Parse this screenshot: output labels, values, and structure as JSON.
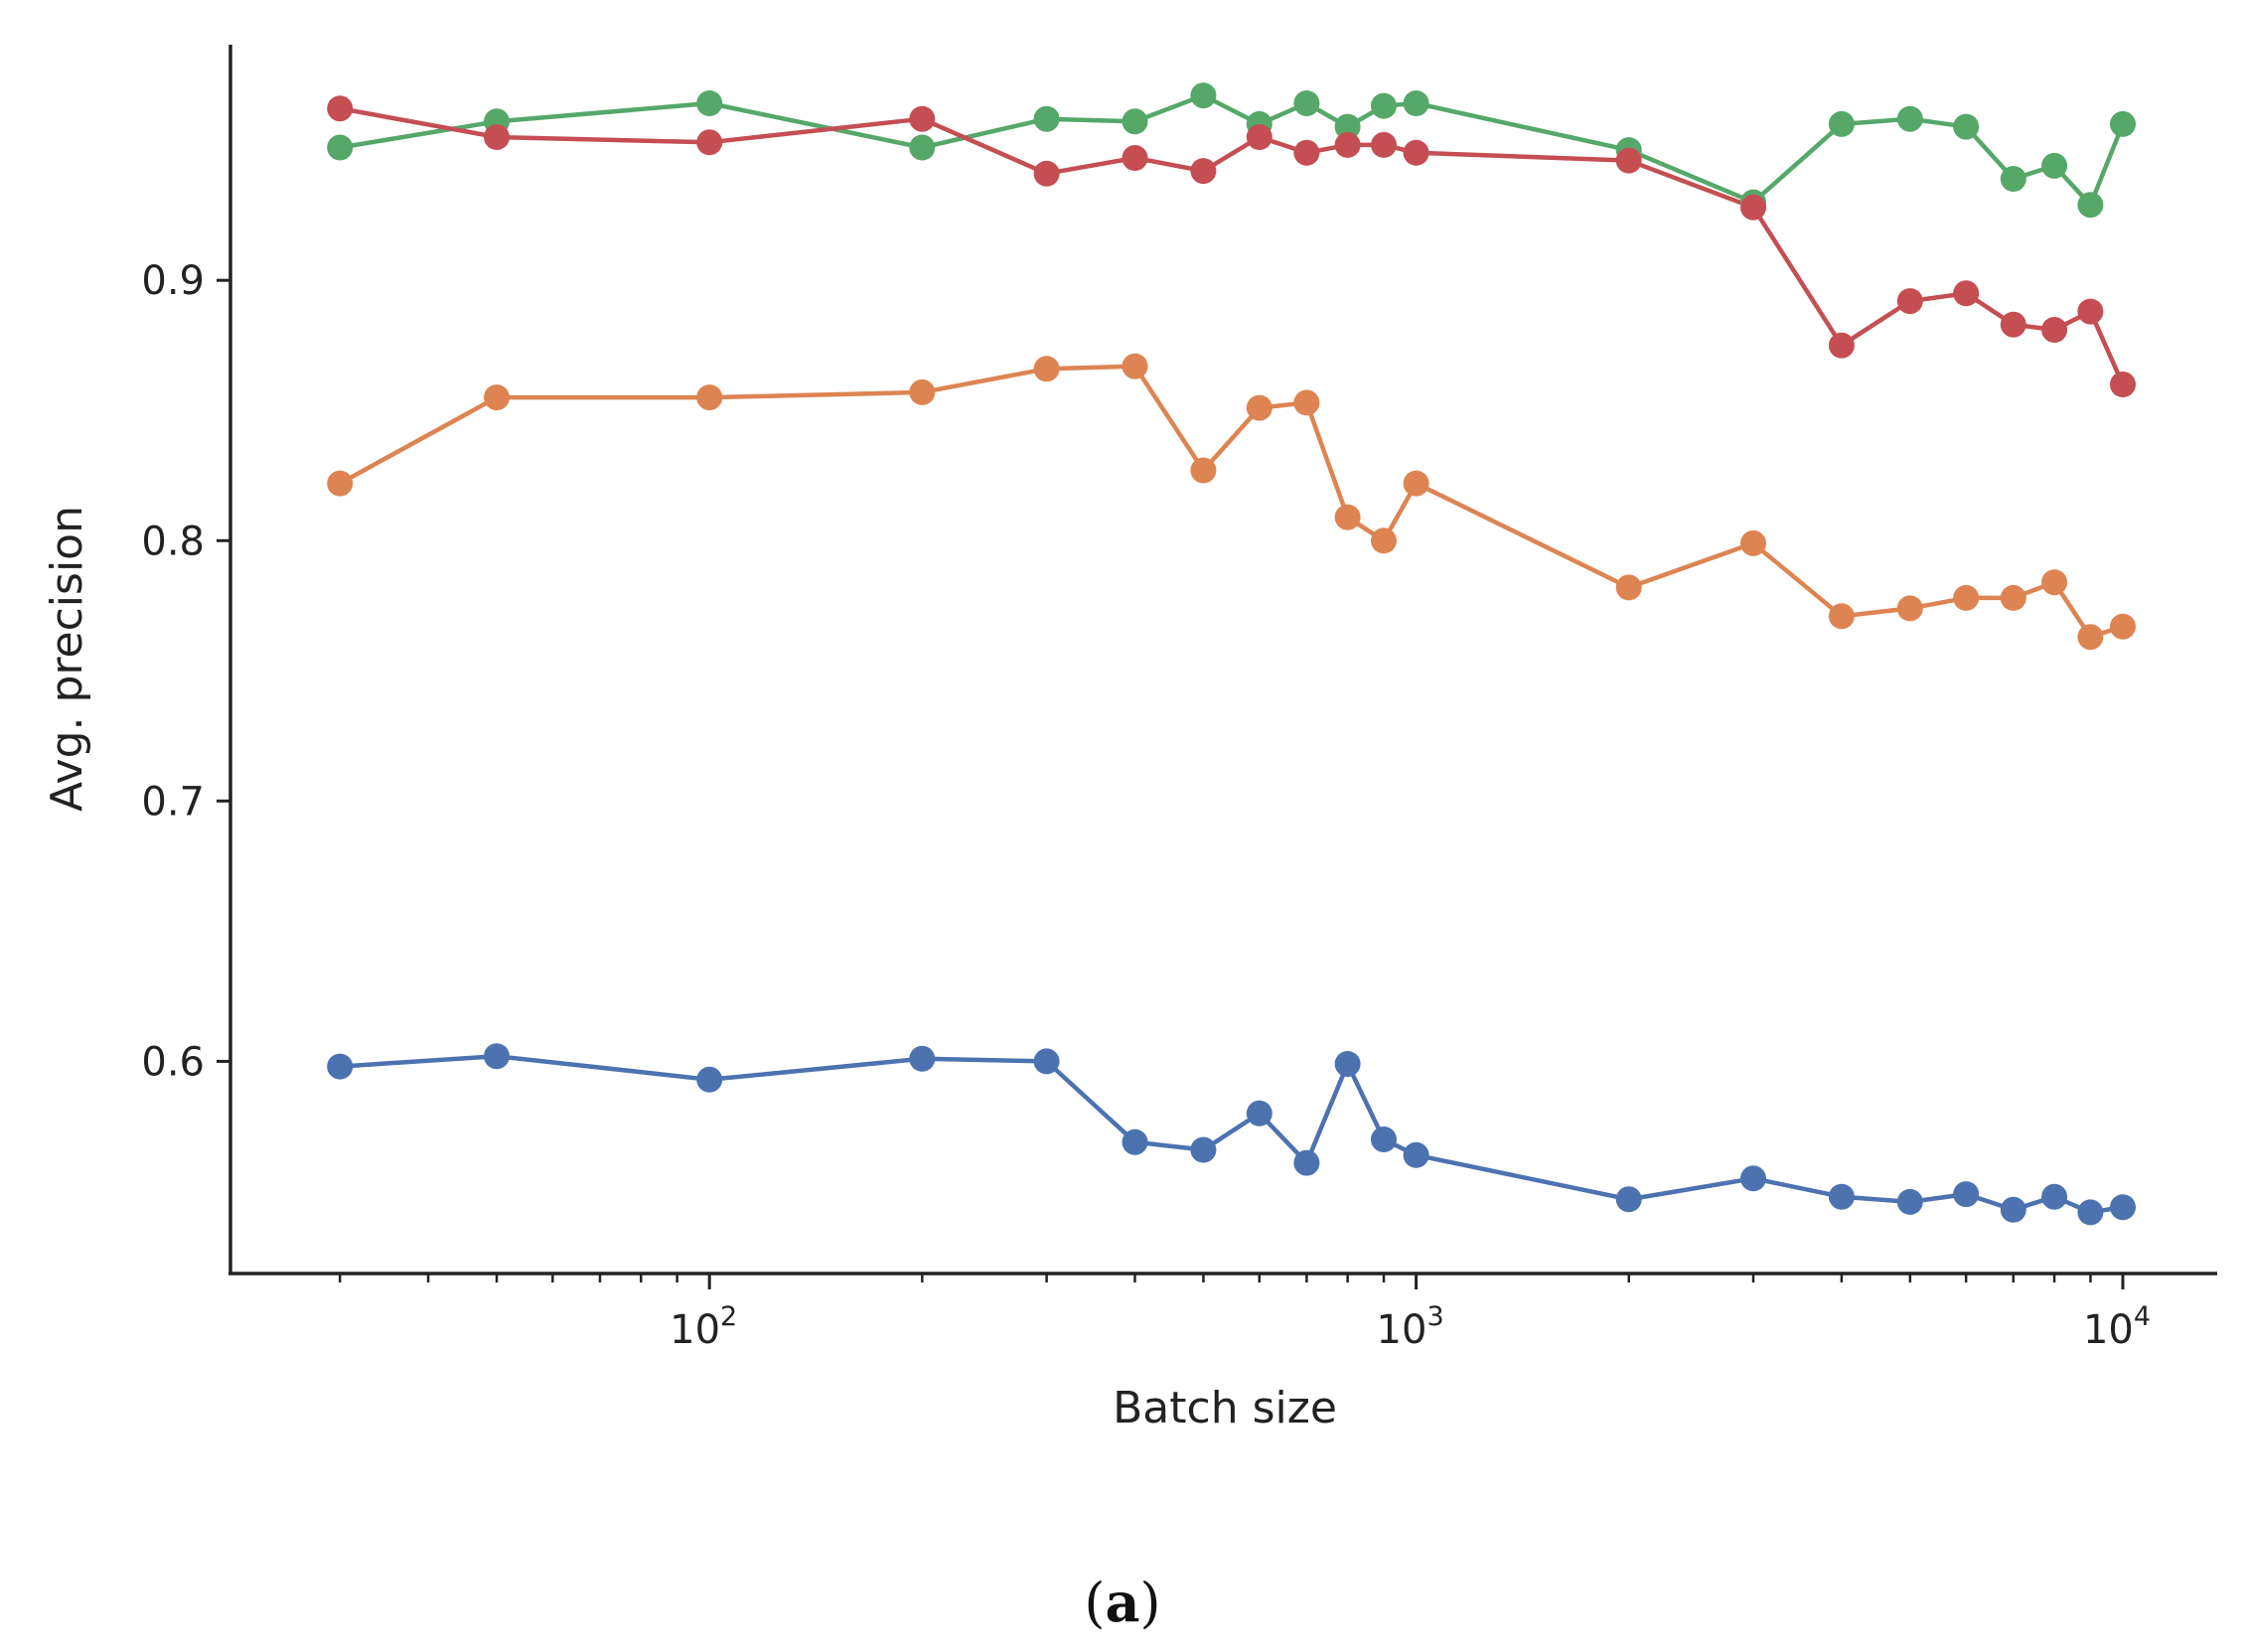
{
  "chart_data": {
    "type": "line",
    "title": "",
    "xlabel": "Batch size",
    "ylabel": "Avg. precision",
    "xscale": "log",
    "xlim": [
      21,
      13600
    ],
    "ylim": [
      0.5185,
      0.9905
    ],
    "grid": false,
    "legend": "none",
    "xticks": [
      {
        "value": 100,
        "base": "10",
        "exp": "2"
      },
      {
        "value": 1000,
        "base": "10",
        "exp": "3"
      },
      {
        "value": 10000,
        "base": "10",
        "exp": "4"
      }
    ],
    "yticks": [
      {
        "value": 0.6,
        "label": "0.6"
      },
      {
        "value": 0.7,
        "label": "0.7"
      },
      {
        "value": 0.8,
        "label": "0.8"
      },
      {
        "value": 0.9,
        "label": "0.9"
      }
    ],
    "x": [
      30,
      50,
      100,
      200,
      300,
      400,
      500,
      600,
      700,
      800,
      900,
      1000,
      2000,
      3000,
      4000,
      5000,
      6000,
      7000,
      8000,
      9000,
      10000
    ],
    "series": [
      {
        "name": "blue",
        "color": "#4c72b0",
        "values": [
          0.598,
          0.602,
          0.593,
          0.601,
          0.6,
          0.569,
          0.566,
          0.58,
          0.561,
          0.599,
          0.57,
          0.564,
          0.547,
          0.555,
          0.548,
          0.546,
          0.549,
          0.543,
          0.548,
          0.542,
          0.544
        ]
      },
      {
        "name": "orange",
        "color": "#dd8452",
        "values": [
          0.822,
          0.855,
          0.855,
          0.857,
          0.866,
          0.867,
          0.827,
          0.851,
          0.853,
          0.809,
          0.8,
          0.822,
          0.782,
          0.799,
          0.771,
          0.774,
          0.778,
          0.778,
          0.784,
          0.763,
          0.767
        ]
      },
      {
        "name": "green",
        "color": "#55a868",
        "values": [
          0.951,
          0.961,
          0.968,
          0.951,
          0.962,
          0.961,
          0.971,
          0.96,
          0.968,
          0.959,
          0.967,
          0.968,
          0.95,
          0.93,
          0.96,
          0.962,
          0.959,
          0.939,
          0.944,
          0.929,
          0.96
        ]
      },
      {
        "name": "red",
        "color": "#c44e52",
        "values": [
          0.966,
          0.955,
          0.953,
          0.962,
          0.941,
          0.947,
          0.942,
          0.955,
          0.949,
          0.952,
          0.952,
          0.949,
          0.946,
          0.928,
          0.875,
          0.892,
          0.895,
          0.883,
          0.881,
          0.888,
          0.86
        ]
      }
    ]
  },
  "caption": {
    "open": "(",
    "letter": "a",
    "close": ")"
  }
}
